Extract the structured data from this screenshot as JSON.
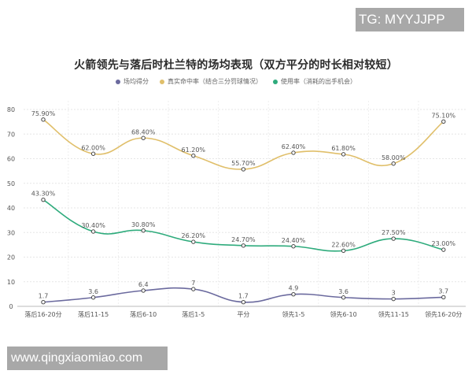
{
  "watermarks": {
    "top_right": "TG: MYYJJPP",
    "bottom_left": "www.qingxiaomiao.com"
  },
  "chart_data": {
    "type": "line",
    "title": "火箭领先与落后时杜兰特的场均表现（双方平分的时长相对较短）",
    "xlabel": "",
    "ylabel": "",
    "ylim": [
      0,
      80
    ],
    "yticks": [
      0,
      10,
      20,
      30,
      40,
      50,
      60,
      70,
      80
    ],
    "grid": true,
    "legend_position": "top",
    "categories": [
      "落后16-20分",
      "落后11-15",
      "落后6-10",
      "落后1-5",
      "平分",
      "领先1-5",
      "领先6-10",
      "领先11-15",
      "领先16-20分"
    ],
    "series": [
      {
        "name": "场均得分",
        "color": "#6b6a9e",
        "values": [
          1.7,
          3.6,
          6.4,
          7,
          1.7,
          4.9,
          3.6,
          3,
          3.7
        ],
        "labels": [
          "1.7",
          "3.6",
          "6.4",
          "7",
          "1.7",
          "4.9",
          "3.6",
          "3",
          "3.7"
        ]
      },
      {
        "name": "真实命中率（结合三分罚球情况）",
        "color": "#e0bf6a",
        "values": [
          75.9,
          62.0,
          68.4,
          61.2,
          55.7,
          62.4,
          61.8,
          58.0,
          75.1
        ],
        "labels": [
          "75.90%",
          "62.00%",
          "68.40%",
          "61.20%",
          "55.70%",
          "62.40%",
          "61.80%",
          "58.00%",
          "75.10%"
        ]
      },
      {
        "name": "使用率（消耗的出手机会）",
        "color": "#2eab7c",
        "values": [
          43.3,
          30.4,
          30.8,
          26.2,
          24.7,
          24.4,
          22.6,
          27.5,
          23.0
        ],
        "labels": [
          "43.30%",
          "30.40%",
          "30.80%",
          "26.20%",
          "24.70%",
          "24.40%",
          "22.60%",
          "27.50%",
          "23.00%"
        ]
      }
    ]
  }
}
